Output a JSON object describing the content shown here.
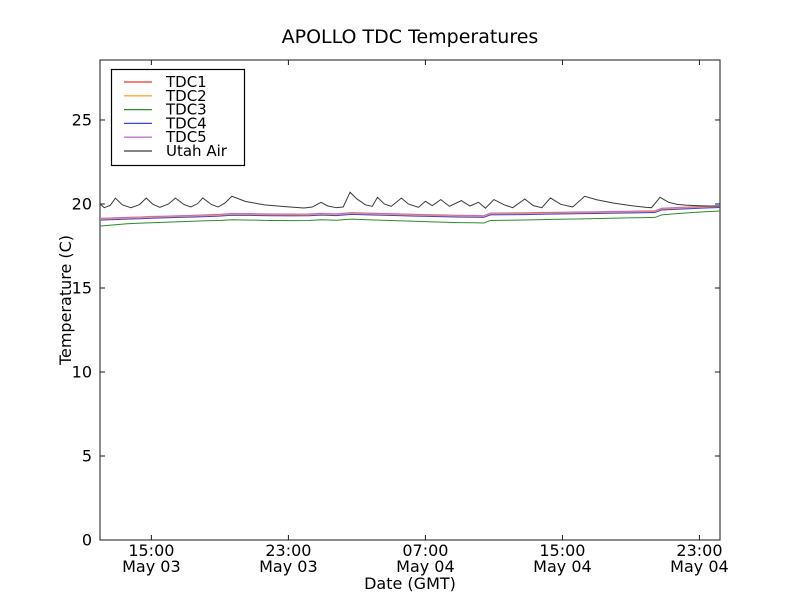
{
  "figure": {
    "background": "#ffffff",
    "frame_color": "#1a1a1a",
    "tick_color": "#1a1a1a",
    "text_color": "#000000"
  },
  "chart_data": {
    "type": "line",
    "title": "APOLLO TDC Temperatures",
    "xlabel": "Date (GMT)",
    "ylabel": "Temperature (C)",
    "grid": false,
    "legend_position": "upper left",
    "x_unit": "hours from left edge (left edge = ~12:00 May 03 GMT)",
    "xlim": [
      0,
      36.2
    ],
    "ylim": [
      0,
      28.57
    ],
    "yticks": [
      0,
      5,
      10,
      15,
      20,
      25
    ],
    "xticks": [
      {
        "t": 3,
        "time": "15:00",
        "date": "May 03"
      },
      {
        "t": 11,
        "time": "23:00",
        "date": "May 03"
      },
      {
        "t": 19,
        "time": "07:00",
        "date": "May 04"
      },
      {
        "t": 27,
        "time": "15:00",
        "date": "May 04"
      },
      {
        "t": 35,
        "time": "23:00",
        "date": "May 04"
      }
    ],
    "series": [
      {
        "name": "TDC1",
        "color": "#ee3333",
        "x": [
          0,
          0.8,
          1.6,
          2.4,
          3.0,
          3.8,
          4.6,
          5.4,
          6.2,
          7.0,
          7.7,
          8.8,
          10.0,
          11.2,
          12.2,
          12.9,
          13.8,
          14.7,
          15.6,
          16.5,
          17.4,
          18.3,
          19.2,
          20.1,
          21.0,
          21.9,
          22.4,
          22.8,
          23.8,
          24.8,
          25.8,
          26.8,
          27.8,
          28.8,
          29.8,
          30.8,
          31.8,
          32.4,
          32.8,
          33.6,
          34.4,
          35.2,
          36.2
        ],
        "y": [
          19.12,
          19.15,
          19.18,
          19.2,
          19.23,
          19.25,
          19.28,
          19.3,
          19.33,
          19.36,
          19.41,
          19.4,
          19.38,
          19.37,
          19.38,
          19.42,
          19.39,
          19.46,
          19.43,
          19.41,
          19.39,
          19.36,
          19.34,
          19.32,
          19.3,
          19.29,
          19.28,
          19.43,
          19.44,
          19.45,
          19.47,
          19.48,
          19.5,
          19.51,
          19.53,
          19.54,
          19.56,
          19.57,
          19.72,
          19.76,
          19.8,
          19.83,
          19.87
        ]
      },
      {
        "name": "TDC2",
        "color": "#ffa829",
        "x": [
          0,
          0.8,
          1.6,
          2.4,
          3.0,
          3.8,
          4.6,
          5.4,
          6.2,
          7.0,
          7.7,
          8.8,
          10.0,
          11.2,
          12.2,
          12.9,
          13.8,
          14.7,
          15.6,
          16.5,
          17.4,
          18.3,
          19.2,
          20.1,
          21.0,
          21.9,
          22.4,
          22.8,
          23.8,
          24.8,
          25.8,
          26.8,
          27.8,
          28.8,
          29.8,
          30.8,
          31.8,
          32.4,
          32.8,
          33.6,
          34.4,
          35.2,
          36.2
        ],
        "y": [
          19.09,
          19.12,
          19.15,
          19.17,
          19.2,
          19.22,
          19.25,
          19.27,
          19.3,
          19.33,
          19.38,
          19.37,
          19.35,
          19.34,
          19.35,
          19.39,
          19.36,
          19.43,
          19.4,
          19.38,
          19.36,
          19.33,
          19.31,
          19.29,
          19.27,
          19.26,
          19.25,
          19.4,
          19.41,
          19.42,
          19.44,
          19.45,
          19.47,
          19.48,
          19.5,
          19.51,
          19.53,
          19.54,
          19.69,
          19.73,
          19.77,
          19.8,
          19.84
        ]
      },
      {
        "name": "TDC3",
        "color": "#2e8b2e",
        "x": [
          0,
          0.8,
          1.6,
          2.4,
          3.0,
          3.8,
          4.6,
          5.4,
          6.2,
          7.0,
          7.7,
          8.8,
          10.0,
          11.2,
          12.2,
          12.9,
          13.8,
          14.7,
          15.6,
          16.5,
          17.4,
          18.3,
          19.2,
          20.1,
          21.0,
          21.9,
          22.4,
          22.8,
          23.8,
          24.8,
          25.8,
          26.8,
          27.8,
          28.8,
          29.8,
          30.8,
          31.8,
          32.4,
          32.8,
          33.6,
          34.4,
          35.2,
          36.2
        ],
        "y": [
          18.68,
          18.76,
          18.82,
          18.86,
          18.88,
          18.91,
          18.94,
          18.97,
          19.0,
          19.02,
          19.06,
          19.04,
          19.02,
          19.01,
          19.02,
          19.06,
          19.03,
          19.1,
          19.06,
          19.03,
          19.0,
          18.97,
          18.94,
          18.91,
          18.89,
          18.88,
          18.87,
          19.02,
          19.03,
          19.05,
          19.07,
          19.09,
          19.11,
          19.13,
          19.15,
          19.17,
          19.19,
          19.2,
          19.35,
          19.42,
          19.48,
          19.53,
          19.58
        ]
      },
      {
        "name": "TDC4",
        "color": "#4040ee",
        "x": [
          0,
          0.8,
          1.6,
          2.4,
          3.0,
          3.8,
          4.6,
          5.4,
          6.2,
          7.0,
          7.7,
          8.8,
          10.0,
          11.2,
          12.2,
          12.9,
          13.8,
          14.7,
          15.6,
          16.5,
          17.4,
          18.3,
          19.2,
          20.1,
          21.0,
          21.9,
          22.4,
          22.8,
          23.8,
          24.8,
          25.8,
          26.8,
          27.8,
          28.8,
          29.8,
          30.8,
          31.8,
          32.4,
          32.8,
          33.6,
          34.4,
          35.2,
          36.2
        ],
        "y": [
          19.04,
          19.07,
          19.1,
          19.12,
          19.15,
          19.17,
          19.2,
          19.22,
          19.25,
          19.28,
          19.33,
          19.32,
          19.3,
          19.29,
          19.3,
          19.34,
          19.31,
          19.38,
          19.35,
          19.33,
          19.31,
          19.28,
          19.26,
          19.24,
          19.22,
          19.21,
          19.2,
          19.35,
          19.36,
          19.37,
          19.39,
          19.4,
          19.42,
          19.43,
          19.45,
          19.46,
          19.48,
          19.49,
          19.64,
          19.68,
          19.72,
          19.75,
          19.79
        ]
      },
      {
        "name": "TDC5",
        "color": "#c173d1",
        "x": [
          0,
          0.8,
          1.6,
          2.4,
          3.0,
          3.8,
          4.6,
          5.4,
          6.2,
          7.0,
          7.7,
          8.8,
          10.0,
          11.2,
          12.2,
          12.9,
          13.8,
          14.7,
          15.6,
          16.5,
          17.4,
          18.3,
          19.2,
          20.1,
          21.0,
          21.9,
          22.4,
          22.8,
          23.8,
          24.8,
          25.8,
          26.8,
          27.8,
          28.8,
          29.8,
          30.8,
          31.8,
          32.4,
          32.8,
          33.6,
          34.4,
          35.2,
          36.2
        ],
        "y": [
          19.15,
          19.18,
          19.21,
          19.23,
          19.26,
          19.28,
          19.31,
          19.33,
          19.36,
          19.39,
          19.44,
          19.43,
          19.41,
          19.4,
          19.41,
          19.45,
          19.42,
          19.49,
          19.46,
          19.44,
          19.42,
          19.39,
          19.37,
          19.35,
          19.33,
          19.32,
          19.31,
          19.46,
          19.47,
          19.48,
          19.5,
          19.51,
          19.53,
          19.54,
          19.56,
          19.57,
          19.59,
          19.6,
          19.75,
          19.79,
          19.83,
          19.86,
          19.9
        ]
      },
      {
        "name": "Utah Air",
        "color": "#3a3a3a",
        "x": [
          0,
          0.25,
          0.6,
          0.9,
          1.3,
          1.8,
          2.3,
          2.7,
          3.1,
          3.5,
          4.0,
          4.4,
          4.9,
          5.3,
          5.7,
          6.0,
          6.5,
          6.9,
          7.3,
          7.7,
          8.5,
          9.6,
          10.8,
          11.9,
          12.4,
          12.9,
          13.3,
          13.8,
          14.2,
          14.6,
          15.0,
          15.5,
          15.9,
          16.2,
          16.6,
          17.0,
          17.6,
          18.0,
          18.6,
          19.0,
          19.4,
          19.9,
          20.4,
          21.1,
          21.6,
          22.1,
          22.5,
          23.0,
          23.6,
          24.1,
          24.8,
          25.3,
          25.8,
          26.3,
          26.9,
          27.6,
          28.3,
          29.0,
          30.0,
          31.0,
          31.9,
          32.2,
          32.7,
          33.2,
          33.7,
          34.2,
          34.8,
          35.5,
          36.2
        ],
        "y": [
          20.0,
          19.78,
          19.92,
          20.35,
          19.95,
          19.78,
          19.96,
          20.35,
          19.97,
          19.8,
          20.0,
          20.35,
          19.97,
          19.82,
          20.02,
          20.36,
          19.97,
          19.82,
          20.06,
          20.46,
          20.15,
          19.95,
          19.84,
          19.76,
          19.82,
          20.1,
          19.88,
          19.78,
          19.82,
          20.7,
          20.3,
          19.95,
          19.86,
          20.4,
          20.0,
          19.86,
          20.35,
          20.0,
          19.8,
          20.16,
          19.9,
          20.26,
          19.86,
          20.2,
          19.88,
          20.1,
          19.75,
          20.26,
          19.95,
          19.78,
          20.3,
          19.9,
          19.78,
          20.36,
          19.98,
          19.82,
          20.46,
          20.25,
          20.05,
          19.9,
          19.8,
          19.78,
          20.4,
          20.1,
          19.98,
          19.93,
          19.9,
          19.88,
          19.87
        ]
      }
    ]
  }
}
